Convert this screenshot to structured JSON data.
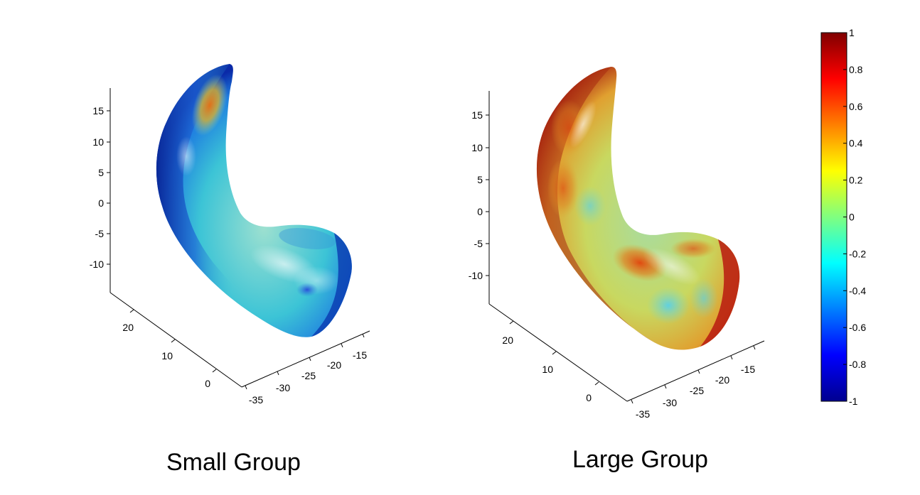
{
  "chart_data": [
    {
      "type": "surface",
      "caption": "Small Group",
      "z_ticks": [
        "15",
        "10",
        "5",
        "0",
        "-5",
        "-10"
      ],
      "y_ticks": [
        "20",
        "10",
        "0"
      ],
      "x_ticks": [
        "-35",
        "-30",
        "-25",
        "-20",
        "-15"
      ]
    },
    {
      "type": "surface",
      "caption": "Large Group",
      "z_ticks": [
        "15",
        "10",
        "5",
        "0",
        "-5",
        "-10"
      ],
      "y_ticks": [
        "20",
        "10",
        "0"
      ],
      "x_ticks": [
        "-35",
        "-30",
        "-25",
        "-20",
        "-15"
      ]
    }
  ],
  "colorbar": {
    "range": [
      -1,
      1
    ],
    "ticks": [
      "1",
      "0.8",
      "0.6",
      "0.4",
      "0.2",
      "0",
      "-0.2",
      "-0.4",
      "-0.6",
      "-0.8",
      "-1"
    ],
    "colormap": "jet"
  }
}
